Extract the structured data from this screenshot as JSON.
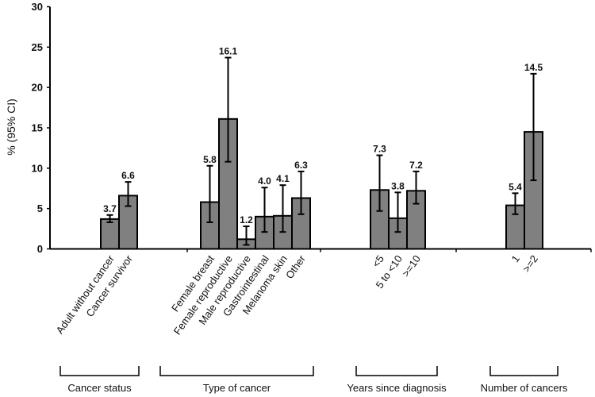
{
  "chart_data": {
    "type": "bar",
    "title": "",
    "xlabel": "",
    "ylabel": "% (95% CI)",
    "ylim": [
      0,
      30
    ],
    "yticks": [
      0,
      5,
      10,
      15,
      20,
      25,
      30
    ],
    "grid": false,
    "legend": "none",
    "bar_color": "#808080",
    "groups": [
      {
        "name": "Cancer status",
        "bars": [
          {
            "category": "Adult without cancer",
            "value": 3.7,
            "value_label": "3.7",
            "ci": [
              3.3,
              4.2
            ]
          },
          {
            "category": "Cancer survivor",
            "value": 6.6,
            "value_label": "6.6",
            "ci": [
              5.3,
              8.3
            ]
          }
        ]
      },
      {
        "name": "Type of cancer",
        "bars": [
          {
            "category": "Female breast",
            "value": 5.8,
            "value_label": "5.8",
            "ci": [
              3.3,
              10.3
            ]
          },
          {
            "category": "Female reproductive",
            "value": 16.1,
            "value_label": "16.1",
            "ci": [
              10.8,
              23.7
            ]
          },
          {
            "category": "Male reproductive",
            "value": 1.2,
            "value_label": "1.2",
            "ci": [
              0.5,
              2.8
            ]
          },
          {
            "category": "Gastrointestinal",
            "value": 4.0,
            "value_label": "4.0",
            "ci": [
              2.1,
              7.6
            ]
          },
          {
            "category": "Melanoma  skin",
            "value": 4.1,
            "value_label": "4.1",
            "ci": [
              2.1,
              7.9
            ]
          },
          {
            "category": "Other",
            "value": 6.3,
            "value_label": "6.3",
            "ci": [
              4.3,
              9.6
            ]
          }
        ]
      },
      {
        "name": "Years since diagnosis",
        "bars": [
          {
            "category": "<5",
            "value": 7.3,
            "value_label": "7.3",
            "ci": [
              4.7,
              11.6
            ]
          },
          {
            "category": "5 to <10",
            "value": 3.8,
            "value_label": "3.8",
            "ci": [
              2.1,
              7.0
            ]
          },
          {
            "category": ">=10",
            "value": 7.2,
            "value_label": "7.2",
            "ci": [
              5.6,
              9.6
            ]
          }
        ]
      },
      {
        "name": "Number of cancers",
        "bars": [
          {
            "category": "1",
            "value": 5.4,
            "value_label": "5.4",
            "ci": [
              4.3,
              6.9
            ]
          },
          {
            "category": ">=2",
            "value": 14.5,
            "value_label": "14.5",
            "ci": [
              8.5,
              21.7
            ]
          }
        ]
      }
    ]
  }
}
